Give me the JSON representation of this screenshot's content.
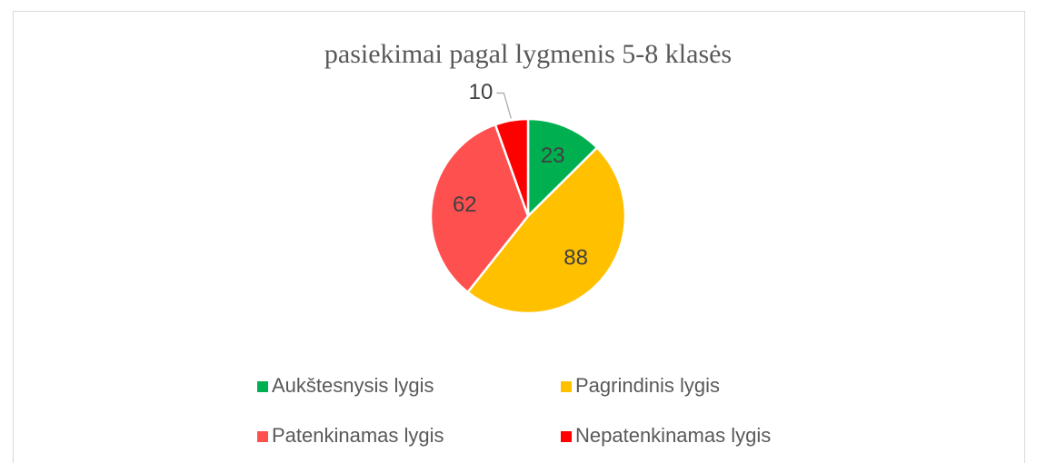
{
  "chart_data": {
    "type": "pie",
    "title": "pasiekimai pagal lygmenis 5-8 klasės",
    "categories": [
      "Aukštesnysis lygis",
      "Pagrindinis lygis",
      "Patenkinamas lygis",
      "Nepatenkinamas lygis"
    ],
    "values": [
      23,
      88,
      62,
      10
    ],
    "colors": [
      "#00b050",
      "#ffc000",
      "#ff5050",
      "#ff0000"
    ],
    "legend": "bottom"
  }
}
